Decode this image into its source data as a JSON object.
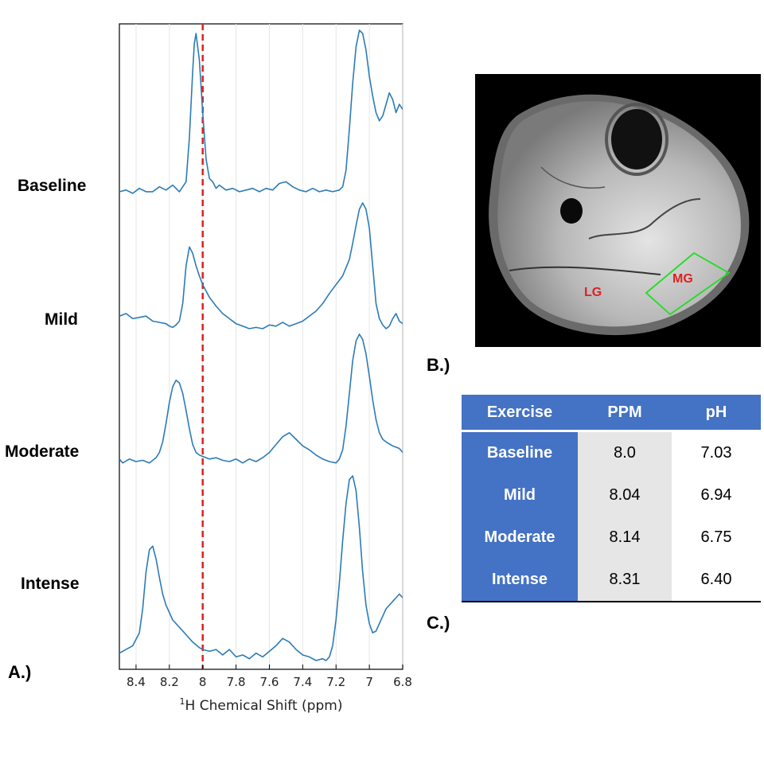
{
  "chart_data": {
    "type": "line",
    "xlabel_sup": "1",
    "xlabel_text": "H Chemical Shift (ppm)",
    "xlim": [
      8.5,
      6.8
    ],
    "x_reversed": true,
    "xticks": [
      "8.4",
      "8.2",
      "8",
      "7.8",
      "7.6",
      "7.4",
      "7.2",
      "7",
      "6.8"
    ],
    "xtick_values": [
      8.4,
      8.2,
      8.0,
      7.8,
      7.6,
      7.4,
      7.2,
      7.0,
      6.8
    ],
    "reference_line_ppm": 8.0,
    "series": [
      {
        "name": "Baseline",
        "x": [
          8.5,
          8.46,
          8.42,
          8.38,
          8.34,
          8.3,
          8.26,
          8.22,
          8.18,
          8.14,
          8.1,
          8.08,
          8.06,
          8.05,
          8.04,
          8.02,
          8.0,
          7.98,
          7.96,
          7.94,
          7.92,
          7.9,
          7.86,
          7.82,
          7.78,
          7.74,
          7.7,
          7.66,
          7.62,
          7.58,
          7.54,
          7.5,
          7.46,
          7.42,
          7.38,
          7.34,
          7.3,
          7.26,
          7.22,
          7.18,
          7.16,
          7.14,
          7.12,
          7.1,
          7.08,
          7.06,
          7.04,
          7.02,
          7.0,
          6.98,
          6.96,
          6.94,
          6.92,
          6.9,
          6.88,
          6.86,
          6.84,
          6.82,
          6.8
        ],
        "y": [
          0.02,
          0.03,
          0.01,
          0.04,
          0.02,
          0.02,
          0.05,
          0.03,
          0.06,
          0.02,
          0.08,
          0.35,
          0.75,
          0.92,
          0.98,
          0.82,
          0.5,
          0.22,
          0.1,
          0.08,
          0.04,
          0.06,
          0.03,
          0.04,
          0.02,
          0.03,
          0.04,
          0.02,
          0.04,
          0.03,
          0.07,
          0.08,
          0.05,
          0.03,
          0.02,
          0.04,
          0.02,
          0.03,
          0.02,
          0.03,
          0.05,
          0.15,
          0.4,
          0.68,
          0.9,
          1.0,
          0.98,
          0.88,
          0.72,
          0.6,
          0.5,
          0.45,
          0.48,
          0.55,
          0.62,
          0.58,
          0.5,
          0.55,
          0.52
        ]
      },
      {
        "name": "Mild",
        "x": [
          8.5,
          8.46,
          8.42,
          8.38,
          8.34,
          8.3,
          8.26,
          8.22,
          8.2,
          8.18,
          8.16,
          8.14,
          8.12,
          8.1,
          8.08,
          8.06,
          8.04,
          8.02,
          8.0,
          7.96,
          7.92,
          7.88,
          7.84,
          7.8,
          7.76,
          7.72,
          7.68,
          7.64,
          7.6,
          7.56,
          7.52,
          7.48,
          7.44,
          7.4,
          7.36,
          7.32,
          7.28,
          7.24,
          7.2,
          7.16,
          7.12,
          7.1,
          7.08,
          7.06,
          7.04,
          7.02,
          7.0,
          6.98,
          6.96,
          6.94,
          6.92,
          6.9,
          6.88,
          6.86,
          6.84,
          6.82,
          6.8
        ],
        "y": [
          0.1,
          0.12,
          0.08,
          0.09,
          0.1,
          0.06,
          0.05,
          0.04,
          0.02,
          0.01,
          0.03,
          0.06,
          0.2,
          0.5,
          0.65,
          0.6,
          0.5,
          0.42,
          0.35,
          0.25,
          0.18,
          0.12,
          0.08,
          0.04,
          0.02,
          0.0,
          0.01,
          0.0,
          0.03,
          0.02,
          0.05,
          0.02,
          0.04,
          0.06,
          0.1,
          0.14,
          0.2,
          0.28,
          0.35,
          0.42,
          0.55,
          0.68,
          0.82,
          0.95,
          1.0,
          0.95,
          0.8,
          0.5,
          0.2,
          0.08,
          0.03,
          0.0,
          0.02,
          0.08,
          0.12,
          0.06,
          0.04
        ]
      },
      {
        "name": "Moderate",
        "x": [
          8.5,
          8.48,
          8.44,
          8.4,
          8.36,
          8.32,
          8.3,
          8.28,
          8.26,
          8.24,
          8.22,
          8.2,
          8.18,
          8.16,
          8.14,
          8.12,
          8.1,
          8.08,
          8.06,
          8.04,
          8.02,
          8.0,
          7.96,
          7.92,
          7.88,
          7.84,
          7.8,
          7.76,
          7.72,
          7.68,
          7.64,
          7.6,
          7.56,
          7.52,
          7.48,
          7.44,
          7.4,
          7.36,
          7.32,
          7.28,
          7.24,
          7.2,
          7.18,
          7.16,
          7.14,
          7.12,
          7.1,
          7.08,
          7.06,
          7.04,
          7.02,
          7.0,
          6.98,
          6.96,
          6.94,
          6.92,
          6.9,
          6.86,
          6.82,
          6.8
        ],
        "y": [
          0.05,
          0.02,
          0.05,
          0.03,
          0.04,
          0.02,
          0.04,
          0.06,
          0.1,
          0.18,
          0.32,
          0.48,
          0.6,
          0.65,
          0.63,
          0.55,
          0.42,
          0.28,
          0.16,
          0.1,
          0.08,
          0.07,
          0.05,
          0.06,
          0.04,
          0.03,
          0.05,
          0.02,
          0.05,
          0.03,
          0.06,
          0.1,
          0.16,
          0.22,
          0.25,
          0.2,
          0.15,
          0.12,
          0.08,
          0.05,
          0.03,
          0.02,
          0.05,
          0.12,
          0.3,
          0.55,
          0.8,
          0.95,
          1.0,
          0.96,
          0.85,
          0.68,
          0.5,
          0.35,
          0.25,
          0.2,
          0.18,
          0.15,
          0.13,
          0.1
        ]
      },
      {
        "name": "Intense",
        "x": [
          8.5,
          8.46,
          8.42,
          8.38,
          8.36,
          8.34,
          8.32,
          8.3,
          8.28,
          8.26,
          8.24,
          8.22,
          8.18,
          8.14,
          8.1,
          8.06,
          8.02,
          8.0,
          7.96,
          7.92,
          7.88,
          7.84,
          7.8,
          7.76,
          7.72,
          7.68,
          7.64,
          7.6,
          7.56,
          7.52,
          7.48,
          7.44,
          7.4,
          7.36,
          7.32,
          7.28,
          7.26,
          7.24,
          7.22,
          7.2,
          7.18,
          7.16,
          7.14,
          7.12,
          7.1,
          7.08,
          7.06,
          7.04,
          7.02,
          7.0,
          6.98,
          6.96,
          6.94,
          6.92,
          6.9,
          6.88,
          6.86,
          6.84,
          6.82,
          6.8
        ],
        "y": [
          0.04,
          0.06,
          0.08,
          0.15,
          0.28,
          0.48,
          0.6,
          0.62,
          0.55,
          0.45,
          0.36,
          0.3,
          0.22,
          0.18,
          0.14,
          0.1,
          0.07,
          0.06,
          0.05,
          0.06,
          0.03,
          0.06,
          0.02,
          0.03,
          0.01,
          0.04,
          0.02,
          0.05,
          0.08,
          0.12,
          0.1,
          0.06,
          0.03,
          0.02,
          0.0,
          0.01,
          0.0,
          0.02,
          0.08,
          0.22,
          0.42,
          0.65,
          0.85,
          0.98,
          1.0,
          0.92,
          0.72,
          0.48,
          0.3,
          0.2,
          0.15,
          0.16,
          0.2,
          0.24,
          0.28,
          0.3,
          0.32,
          0.34,
          0.36,
          0.34
        ]
      }
    ],
    "line_color": "#2c7bb6",
    "reference_line_color": "#e02020",
    "grid": true
  },
  "panels": {
    "a_label": "A.)",
    "b_label": "B.)",
    "c_label": "C.)"
  },
  "mri": {
    "label_lg": "LG",
    "label_mg": "MG",
    "roi_color": "#22dd22",
    "label_color": "#e02020"
  },
  "table": {
    "headers": [
      "Exercise",
      "PPM",
      "pH"
    ],
    "header_color": "#4472c4",
    "rows": [
      {
        "exercise": "Baseline",
        "ppm": "8.0",
        "ph": "7.03"
      },
      {
        "exercise": "Mild",
        "ppm": "8.04",
        "ph": "6.94"
      },
      {
        "exercise": "Moderate",
        "ppm": "8.14",
        "ph": "6.75"
      },
      {
        "exercise": "Intense",
        "ppm": "8.31",
        "ph": "6.40"
      }
    ]
  }
}
